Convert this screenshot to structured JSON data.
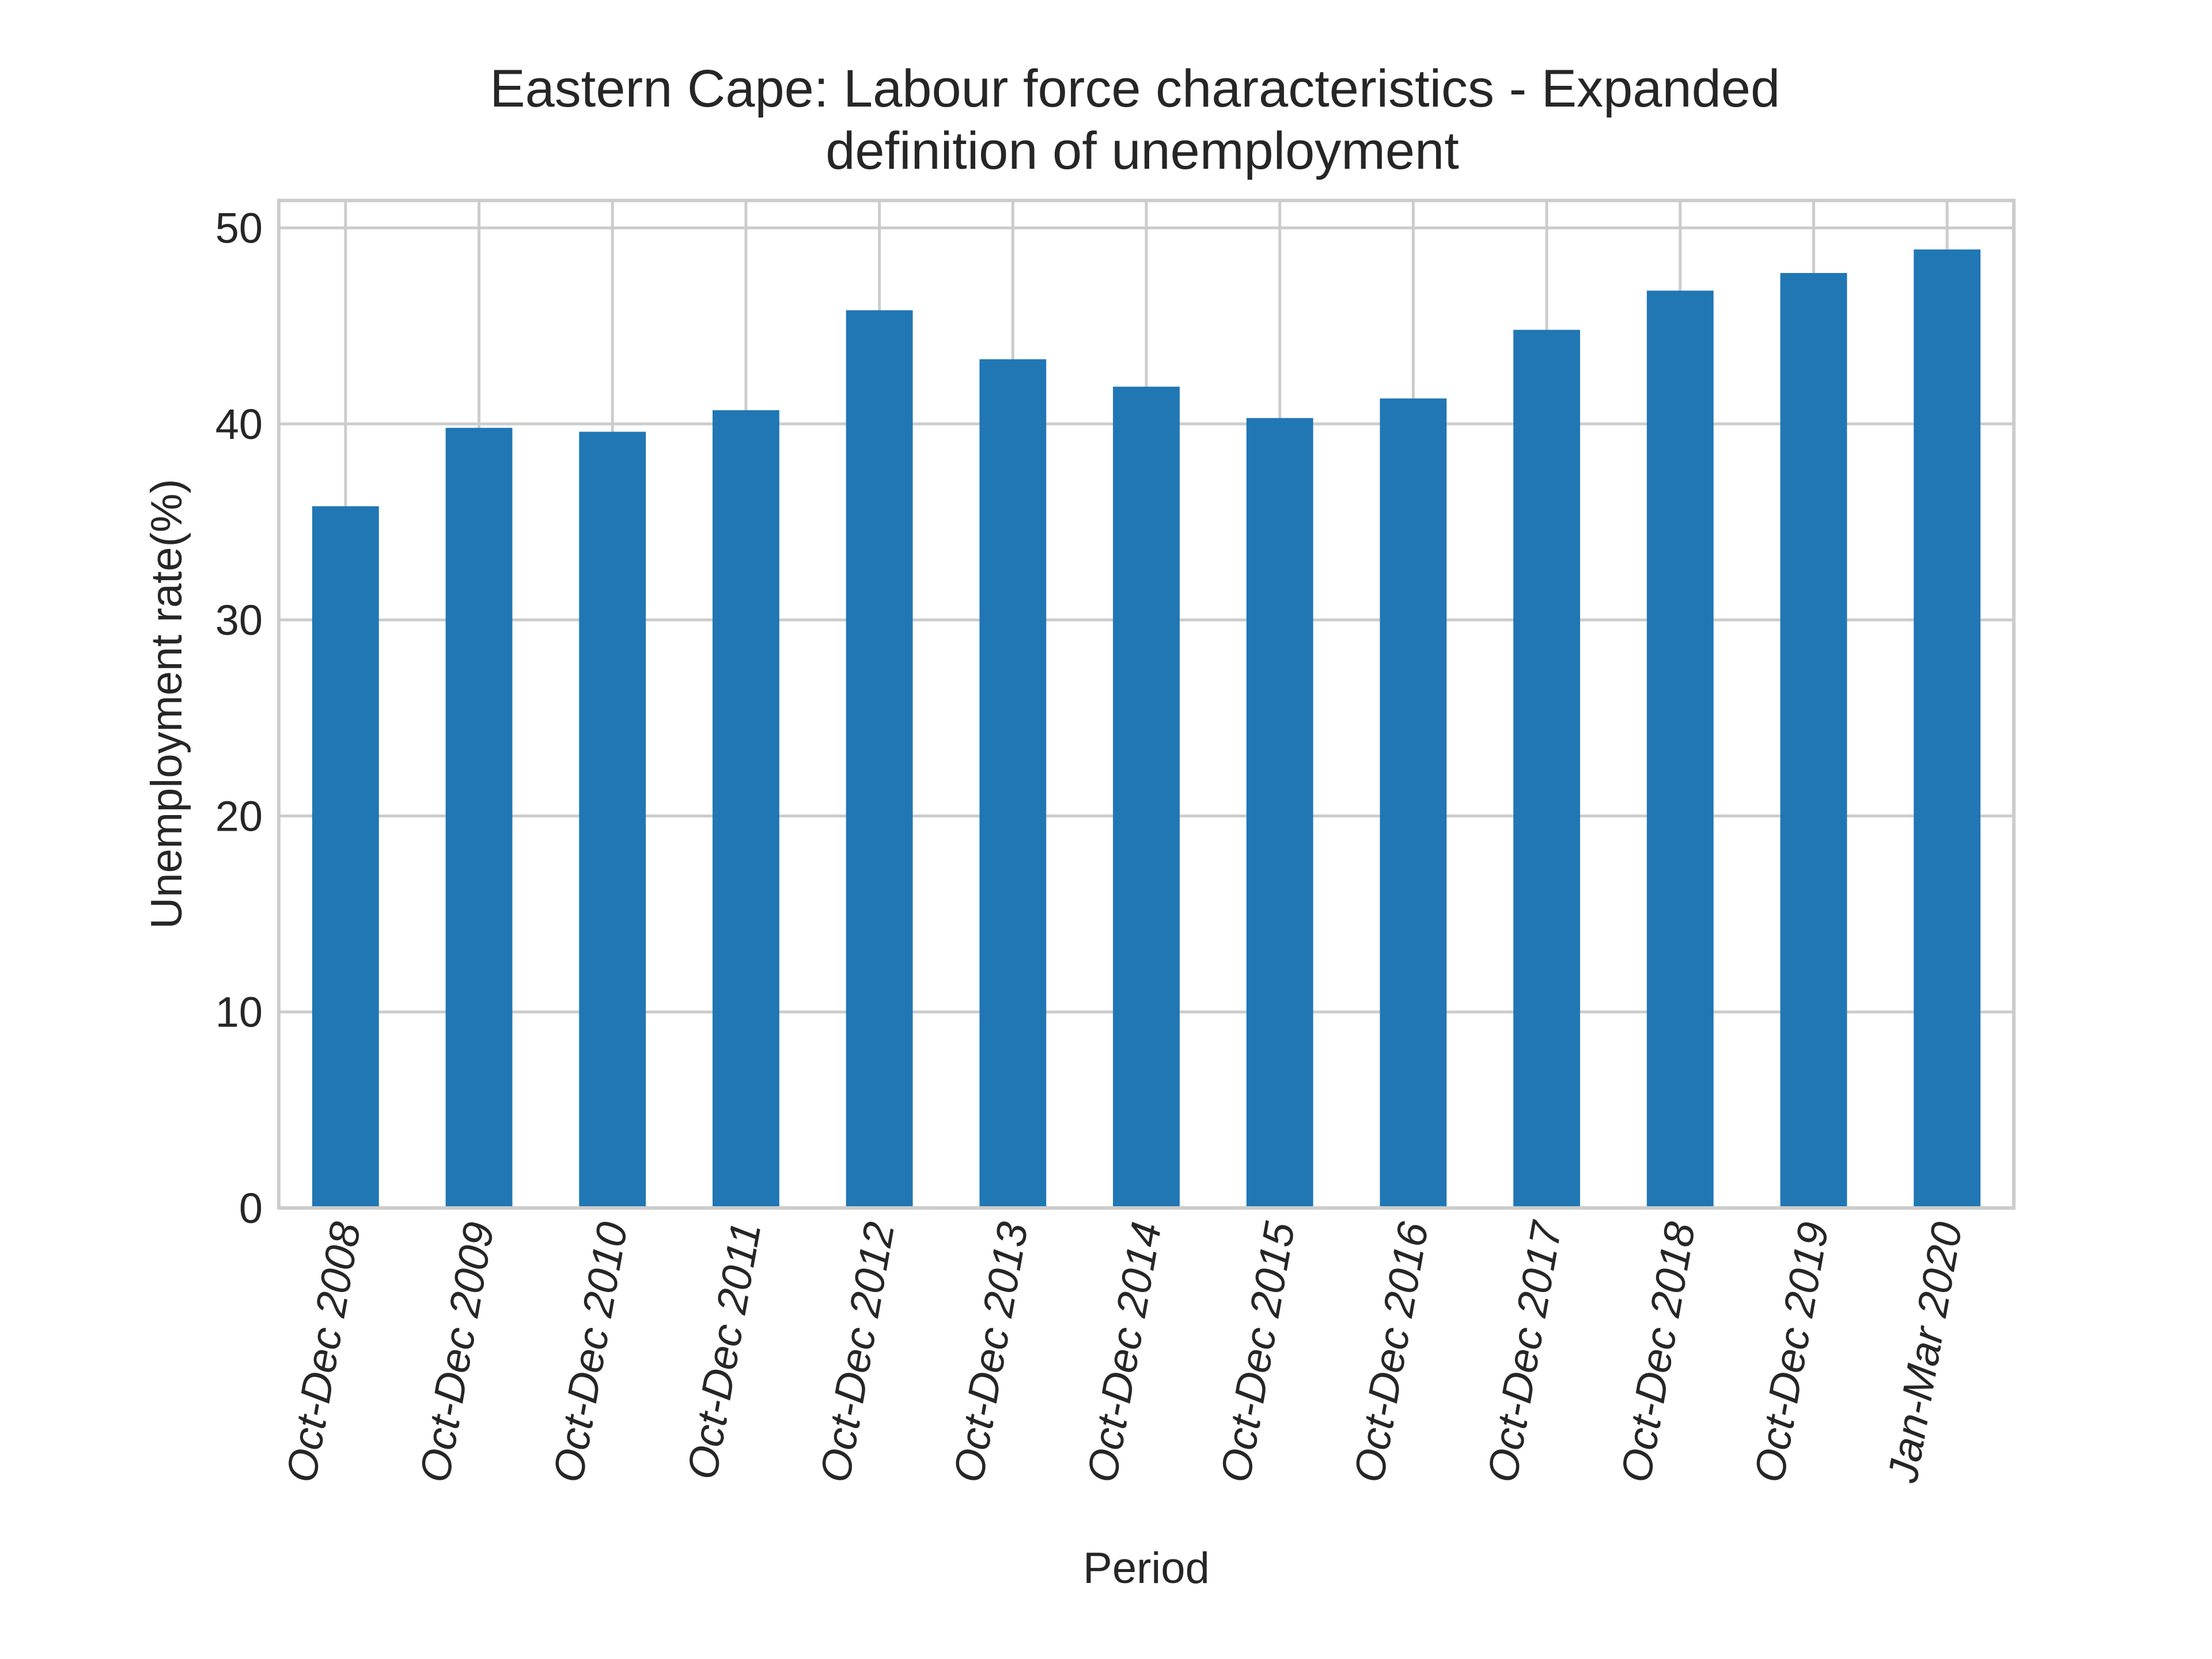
{
  "chart_data": {
    "type": "bar",
    "title": "Eastern Cape: Labour force characteristics - Expanded definition of unemployment",
    "title_lines": [
      "Eastern Cape: Labour force characteristics - Expanded",
      "definition of unemployment"
    ],
    "xlabel": "Period",
    "ylabel": "Unemployment rate(%)",
    "categories": [
      "Oct-Dec 2008",
      "Oct-Dec 2009",
      "Oct-Dec 2010",
      "Oct-Dec 2011",
      "Oct-Dec 2012",
      "Oct-Dec 2013",
      "Oct-Dec 2014",
      "Oct-Dec 2015",
      "Oct-Dec 2016",
      "Oct-Dec 2017",
      "Oct-Dec 2018",
      "Oct-Dec 2019",
      "Jan-Mar 2020"
    ],
    "values": [
      35.8,
      39.8,
      39.6,
      40.7,
      45.8,
      43.3,
      41.9,
      40.3,
      41.3,
      44.8,
      46.8,
      47.7,
      48.9
    ],
    "ylim": [
      0,
      51.4
    ],
    "yticks": [
      0,
      10,
      20,
      30,
      40,
      50
    ],
    "grid": true,
    "legend": "none",
    "colors": {
      "bar": "#2077b4",
      "grid": "#cccccc",
      "frame": "#cccccc",
      "text": "#262626"
    }
  }
}
